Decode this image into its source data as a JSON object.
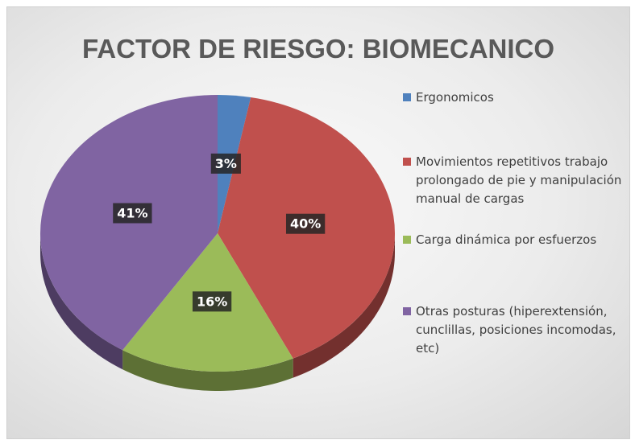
{
  "chart_data": {
    "type": "pie",
    "title": "FACTOR DE RIESGO: BIOMECANICO",
    "categories": [
      "Ergonomicos",
      "Movimientos repetitivos trabajo prolongado de pie y manipulación manual de cargas",
      "Carga dinámica por esfuerzos",
      "Otras posturas (hiperextensión, cunclillas, posiciones incomodas, etc)"
    ],
    "values": [
      3,
      40,
      16,
      41
    ],
    "value_labels": [
      "3%",
      "40%",
      "16%",
      "41%"
    ],
    "colors": [
      "#4f81bd",
      "#c0504d",
      "#9bbb59",
      "#8064a2"
    ],
    "legend": "right"
  }
}
